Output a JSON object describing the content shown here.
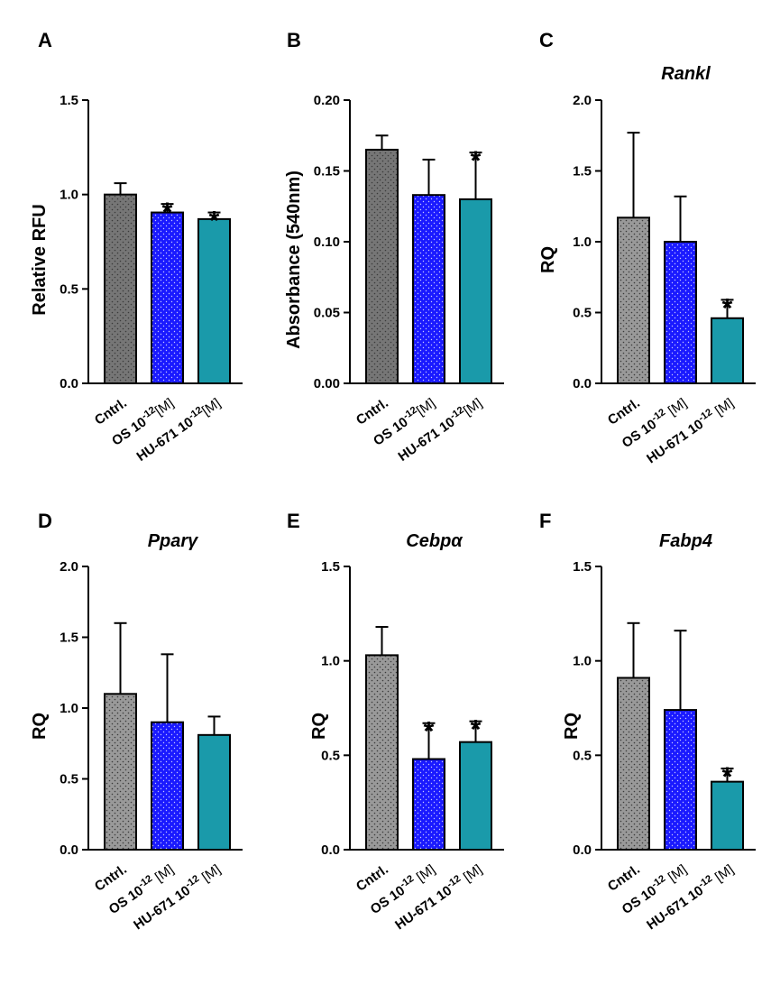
{
  "figure": {
    "bar_colors": [
      "#999999",
      "#1a1aff",
      "#1a9aaa"
    ],
    "bar_colors_dark": [
      "#767676",
      "#1a1aff",
      "#1a9aaa"
    ]
  },
  "chart_data": [
    {
      "panel": "A",
      "type": "bar",
      "title": "",
      "ylabel": "Relative RFU",
      "ylim": [
        0,
        1.5
      ],
      "yticks": [
        "0.0",
        "0.5",
        "1.0",
        "1.5"
      ],
      "categories": [
        "Cntrl.",
        "OS 10^-12[M]",
        "HU-671 10^-12[M]"
      ],
      "values": [
        1.0,
        0.905,
        0.87
      ],
      "errors": [
        0.06,
        0.045,
        0.035
      ],
      "significant": [
        false,
        true,
        true
      ],
      "significance_marker": "*",
      "dark_control": true
    },
    {
      "panel": "B",
      "type": "bar",
      "title": "",
      "ylabel": "Absorbance (540nm)",
      "ylim": [
        0,
        0.2
      ],
      "yticks": [
        "0.00",
        "0.05",
        "0.10",
        "0.15",
        "0.20"
      ],
      "categories": [
        "Cntrl.",
        "OS 10^-12[M]",
        "HU-671 10^-12[M]"
      ],
      "values": [
        0.165,
        0.133,
        0.13
      ],
      "errors": [
        0.01,
        0.025,
        0.033
      ],
      "significant": [
        false,
        false,
        true
      ],
      "significance_marker": "*",
      "dark_control": true
    },
    {
      "panel": "C",
      "type": "bar",
      "title": "Rankl",
      "ylabel": "RQ",
      "ylim": [
        0,
        2.0
      ],
      "yticks": [
        "0.0",
        "0.5",
        "1.0",
        "1.5",
        "2.0"
      ],
      "categories": [
        "Cntrl.",
        "OS 10^-12 [M]",
        "HU-671 10^-12 [M]"
      ],
      "values": [
        1.17,
        1.0,
        0.46
      ],
      "errors": [
        0.6,
        0.32,
        0.13
      ],
      "significant": [
        false,
        false,
        true
      ],
      "significance_marker": "*",
      "dark_control": false
    },
    {
      "panel": "D",
      "type": "bar",
      "title": "Pparγ",
      "ylabel": "RQ",
      "ylim": [
        0,
        2.0
      ],
      "yticks": [
        "0.0",
        "0.5",
        "1.0",
        "1.5",
        "2.0"
      ],
      "categories": [
        "Cntrl.",
        "OS 10^-12 [M]",
        "HU-671 10^-12 [M]"
      ],
      "values": [
        1.1,
        0.9,
        0.81
      ],
      "errors": [
        0.5,
        0.48,
        0.13
      ],
      "significant": [
        false,
        false,
        false
      ],
      "significance_marker": "*",
      "dark_control": false
    },
    {
      "panel": "E",
      "type": "bar",
      "title": "Cebpα",
      "ylabel": "RQ",
      "ylim": [
        0,
        1.5
      ],
      "yticks": [
        "0.0",
        "0.5",
        "1.0",
        "1.5"
      ],
      "categories": [
        "Cntrl.",
        "OS 10^-12 [M]",
        "HU-671 10^-12 [M]"
      ],
      "values": [
        1.03,
        0.48,
        0.57
      ],
      "errors": [
        0.15,
        0.19,
        0.11
      ],
      "significant": [
        false,
        true,
        true
      ],
      "significance_marker": "*",
      "dark_control": false
    },
    {
      "panel": "F",
      "type": "bar",
      "title": "Fabp4",
      "ylabel": "RQ",
      "ylim": [
        0,
        1.5
      ],
      "yticks": [
        "0.0",
        "0.5",
        "1.0",
        "1.5"
      ],
      "categories": [
        "Cntrl.",
        "OS 10^-12 [M]",
        "HU-671 10^-12 [M]"
      ],
      "values": [
        0.91,
        0.74,
        0.36
      ],
      "errors": [
        0.29,
        0.42,
        0.07
      ],
      "significant": [
        false,
        false,
        true
      ],
      "significance_marker": "*",
      "dark_control": false
    }
  ]
}
